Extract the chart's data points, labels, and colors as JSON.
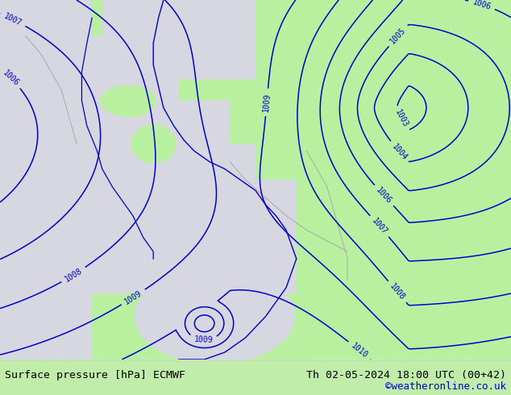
{
  "title_left": "Surface pressure [hPa] ECMWF",
  "title_right": "Th 02-05-2024 18:00 UTC (00+42)",
  "watermark": "©weatheronline.co.uk",
  "bg_land_color": "#b8f0a0",
  "bg_sea_color": "#dcdce8",
  "contour_color": "#0000cc",
  "contour_label_color": "#0000cc",
  "coast_color": "#aaaaaa",
  "text_color_left": "#000000",
  "text_color_right": "#000000",
  "watermark_color": "#0000cc",
  "bottom_bar_color": "#c0eeaa",
  "figsize": [
    6.34,
    4.9
  ],
  "dpi": 100
}
